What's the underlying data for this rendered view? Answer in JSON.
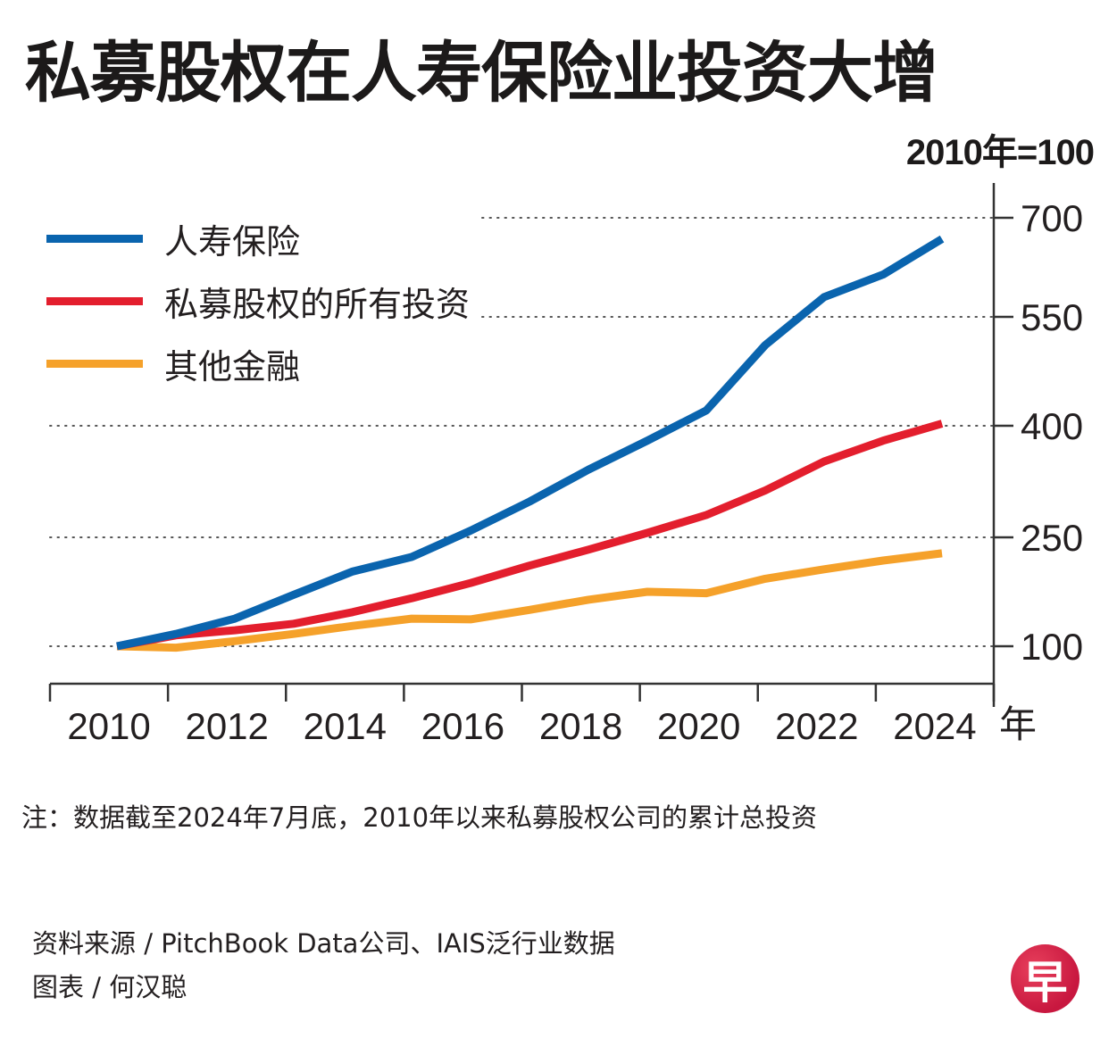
{
  "title": "私募股权在人寿保险业投资大增",
  "unit_label": "2010年=100",
  "legend": [
    {
      "label": "人寿保险",
      "color": "#0a64ae"
    },
    {
      "label": "私募股权的所有投资",
      "color": "#e31e2d"
    },
    {
      "label": "其他金融",
      "color": "#f5a12a"
    }
  ],
  "note": "注：数据截至2024年7月底，2010年以来私募股权公司的累计总投资",
  "source": "资料来源 / PitchBook Data公司、IAIS泛行业数据",
  "credit": "图表 / 何汉聪",
  "logo": {
    "glyph": "早",
    "name": "zaobao-logo",
    "color": "#d4204a"
  },
  "chart_data": {
    "type": "line",
    "title": "私募股权在人寿保险业投资大增",
    "subtitle": "2010年=100",
    "xlabel": "年",
    "ylabel": "",
    "x": [
      2010,
      2011,
      2012,
      2013,
      2014,
      2015,
      2016,
      2017,
      2018,
      2019,
      2020,
      2021,
      2022,
      2023,
      2024
    ],
    "x_ticks": [
      "2010",
      "2012",
      "2014",
      "2016",
      "2018",
      "2020",
      "2022",
      "2024"
    ],
    "x_unit_label": "年",
    "y_ticks": [
      100,
      250,
      400,
      550,
      700
    ],
    "ylim": [
      50,
      750
    ],
    "grid": "dotted horizontal",
    "y_axis_position": "right",
    "legend_position": "top-left",
    "series": [
      {
        "name": "人寿保险",
        "color": "#0a64ae",
        "values": [
          100,
          117,
          138,
          171,
          203,
          223,
          259,
          298,
          341,
          380,
          421,
          511,
          580,
          614,
          668
        ]
      },
      {
        "name": "私募股权的所有投资",
        "color": "#e31e2d",
        "values": [
          100,
          115,
          122,
          131,
          147,
          166,
          187,
          211,
          233,
          256,
          280,
          313,
          352,
          380,
          403
        ]
      },
      {
        "name": "其他金融",
        "color": "#f5a12a",
        "values": [
          100,
          98,
          107,
          117,
          128,
          138,
          137,
          150,
          164,
          175,
          173,
          193,
          206,
          218,
          228
        ]
      }
    ]
  }
}
